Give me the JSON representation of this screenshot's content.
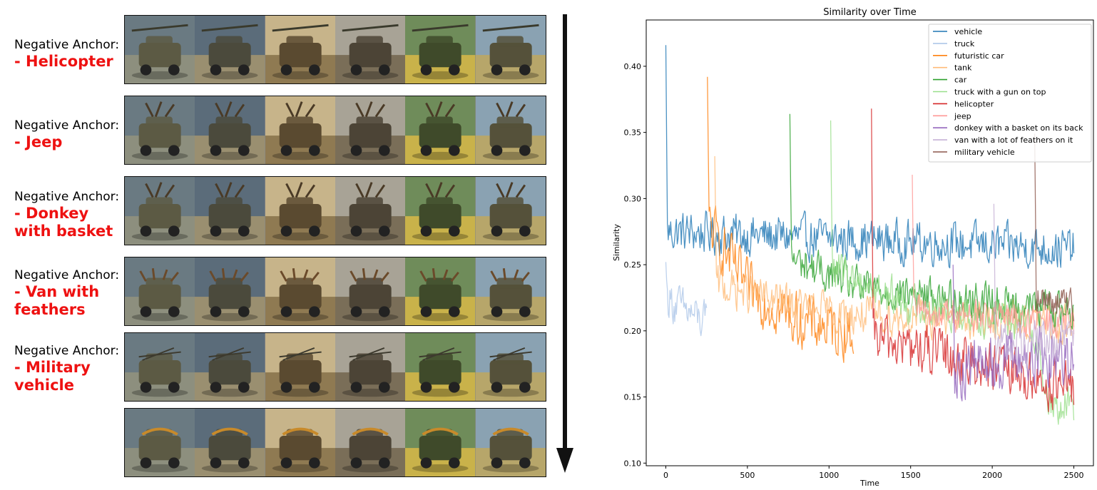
{
  "left_panel": {
    "prefix": "Negative Anchor:",
    "anchors": [
      {
        "name": "- Helicopter",
        "theme": "helicopter"
      },
      {
        "name": "- Jeep",
        "theme": "jeep"
      },
      {
        "name": "- Donkey\nwith basket",
        "theme": "donkey"
      },
      {
        "name": "- Van with\nfeathers",
        "theme": "van"
      },
      {
        "name": "- Military\nvehicle",
        "theme": "military"
      },
      {
        "name": "",
        "theme": "cart"
      }
    ],
    "arrow_icon": "down-arrow-icon"
  },
  "chart_data": {
    "type": "line",
    "title": "Similarity over Time",
    "xlabel": "Time",
    "ylabel": "Similarity",
    "xlim": [
      -120,
      2620
    ],
    "ylim": [
      0.098,
      0.435
    ],
    "xticks": [
      0,
      500,
      1000,
      1500,
      2000,
      2500
    ],
    "yticks": [
      0.1,
      0.15,
      0.2,
      0.25,
      0.3,
      0.35,
      0.4
    ],
    "legend_position": "top-right",
    "grid": false,
    "series": [
      {
        "name": "vehicle",
        "color": "#1f77b4",
        "start": 0,
        "end": 2500,
        "base": [
          [
            0,
            0.275
          ],
          [
            2500,
            0.262
          ]
        ],
        "spike": 0.416,
        "noise": 0.014
      },
      {
        "name": "truck",
        "color": "#aec7e8",
        "start": 0,
        "end": 250,
        "base": [
          [
            0,
            0.225
          ],
          [
            250,
            0.205
          ]
        ],
        "spike": 0.252,
        "noise": 0.014
      },
      {
        "name": "futuristic car",
        "color": "#ff7f0e",
        "start": 255,
        "end": 1150,
        "base": [
          [
            255,
            0.282
          ],
          [
            500,
            0.232
          ],
          [
            800,
            0.208
          ],
          [
            1150,
            0.198
          ]
        ],
        "spike": 0.392,
        "noise": 0.018
      },
      {
        "name": "tank",
        "color": "#ffbb78",
        "start": 300,
        "end": 2500,
        "base": [
          [
            300,
            0.235
          ],
          [
            1000,
            0.213
          ],
          [
            2500,
            0.205
          ]
        ],
        "spike": 0.332,
        "noise": 0.013
      },
      {
        "name": "car",
        "color": "#2ca02c",
        "start": 760,
        "end": 2500,
        "base": [
          [
            760,
            0.255
          ],
          [
            1200,
            0.232
          ],
          [
            2500,
            0.215
          ]
        ],
        "spike": 0.364,
        "noise": 0.013
      },
      {
        "name": "truck with a gun on top",
        "color": "#98df8a",
        "start": 1010,
        "end": 2500,
        "base": [
          [
            1010,
            0.248
          ],
          [
            1500,
            0.22
          ],
          [
            2250,
            0.205
          ],
          [
            2350,
            0.14
          ],
          [
            2500,
            0.145
          ]
        ],
        "spike": 0.359,
        "noise": 0.013
      },
      {
        "name": "helicopter",
        "color": "#d62728",
        "start": 1260,
        "end": 2500,
        "base": [
          [
            1260,
            0.195
          ],
          [
            1750,
            0.18
          ],
          [
            2500,
            0.155
          ]
        ],
        "spike": 0.368,
        "noise": 0.017
      },
      {
        "name": "jeep",
        "color": "#ff9896",
        "start": 1510,
        "end": 2500,
        "base": [
          [
            1510,
            0.215
          ],
          [
            2500,
            0.205
          ]
        ],
        "spike": 0.318,
        "noise": 0.011
      },
      {
        "name": "donkey with a basket on its back",
        "color": "#9467bd",
        "start": 1760,
        "end": 2500,
        "base": [
          [
            1760,
            0.172
          ],
          [
            2500,
            0.185
          ]
        ],
        "spike": 0.25,
        "noise": 0.02
      },
      {
        "name": "van with a lot of feathers on it",
        "color": "#c5b0d5",
        "start": 2010,
        "end": 2500,
        "base": [
          [
            2010,
            0.19
          ],
          [
            2500,
            0.195
          ]
        ],
        "spike": 0.296,
        "noise": 0.016
      },
      {
        "name": "military vehicle",
        "color": "#8c564b",
        "start": 2260,
        "end": 2500,
        "base": [
          [
            2260,
            0.225
          ],
          [
            2500,
            0.22
          ]
        ],
        "spike": 0.349,
        "noise": 0.011
      }
    ]
  }
}
